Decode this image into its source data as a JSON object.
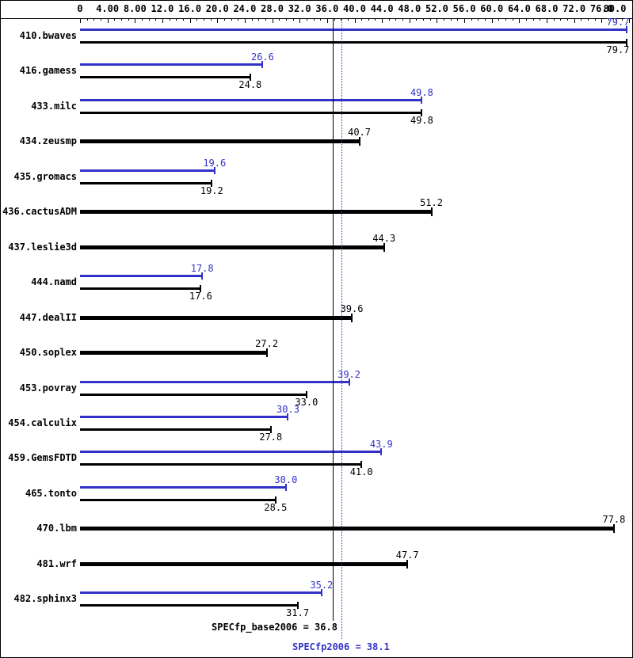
{
  "colors": {
    "peak": "#3232c8",
    "base": "#000000",
    "background": "#ffffff",
    "border": "#000000"
  },
  "axis": {
    "min": 0,
    "max": 80,
    "major_step": 4,
    "ticks": [
      {
        "value": 0,
        "label": "0"
      },
      {
        "value": 4,
        "label": "4.00"
      },
      {
        "value": 8,
        "label": "8.00"
      },
      {
        "value": 12,
        "label": "12.0"
      },
      {
        "value": 16,
        "label": "16.0"
      },
      {
        "value": 20,
        "label": "20.0"
      },
      {
        "value": 24,
        "label": "24.0"
      },
      {
        "value": 28,
        "label": "28.0"
      },
      {
        "value": 32,
        "label": "32.0"
      },
      {
        "value": 36,
        "label": "36.0"
      },
      {
        "value": 40,
        "label": "40.0"
      },
      {
        "value": 44,
        "label": "44.0"
      },
      {
        "value": 48,
        "label": "48.0"
      },
      {
        "value": 52,
        "label": "52.0"
      },
      {
        "value": 56,
        "label": "56.0"
      },
      {
        "value": 60,
        "label": "60.0"
      },
      {
        "value": 64,
        "label": "64.0"
      },
      {
        "value": 68,
        "label": "68.0"
      },
      {
        "value": 72,
        "label": "72.0"
      },
      {
        "value": 76,
        "label": "76.0"
      },
      {
        "value": 80,
        "label": "80.0"
      }
    ]
  },
  "chart_data": {
    "type": "bar",
    "orientation": "horizontal",
    "xlim": [
      0,
      80
    ],
    "series": [
      "peak",
      "base"
    ],
    "legend": "none",
    "benchmarks": [
      {
        "name": "410.bwaves",
        "peak": 79.7,
        "peak_label": "79.7",
        "base": 79.7,
        "base_label": "79.7"
      },
      {
        "name": "416.gamess",
        "peak": 26.6,
        "peak_label": "26.6",
        "base": 24.8,
        "base_label": "24.8"
      },
      {
        "name": "433.milc",
        "peak": 49.8,
        "peak_label": "49.8",
        "base": 49.8,
        "base_label": "49.8"
      },
      {
        "name": "434.zeusmp",
        "peak": null,
        "peak_label": null,
        "base": 40.7,
        "base_label": "40.7"
      },
      {
        "name": "435.gromacs",
        "peak": 19.6,
        "peak_label": "19.6",
        "base": 19.2,
        "base_label": "19.2"
      },
      {
        "name": "436.cactusADM",
        "peak": null,
        "peak_label": null,
        "base": 51.2,
        "base_label": "51.2"
      },
      {
        "name": "437.leslie3d",
        "peak": null,
        "peak_label": null,
        "base": 44.3,
        "base_label": "44.3"
      },
      {
        "name": "444.namd",
        "peak": 17.8,
        "peak_label": "17.8",
        "base": 17.6,
        "base_label": "17.6"
      },
      {
        "name": "447.dealII",
        "peak": null,
        "peak_label": null,
        "base": 39.6,
        "base_label": "39.6"
      },
      {
        "name": "450.soplex",
        "peak": null,
        "peak_label": null,
        "base": 27.2,
        "base_label": "27.2"
      },
      {
        "name": "453.povray",
        "peak": 39.2,
        "peak_label": "39.2",
        "base": 33.0,
        "base_label": "33.0"
      },
      {
        "name": "454.calculix",
        "peak": 30.3,
        "peak_label": "30.3",
        "base": 27.8,
        "base_label": "27.8"
      },
      {
        "name": "459.GemsFDTD",
        "peak": 43.9,
        "peak_label": "43.9",
        "base": 41.0,
        "base_label": "41.0"
      },
      {
        "name": "465.tonto",
        "peak": 30.0,
        "peak_label": "30.0",
        "base": 28.5,
        "base_label": "28.5"
      },
      {
        "name": "470.lbm",
        "peak": null,
        "peak_label": null,
        "base": 77.8,
        "base_label": "77.8"
      },
      {
        "name": "481.wrf",
        "peak": null,
        "peak_label": null,
        "base": 47.7,
        "base_label": "47.7"
      },
      {
        "name": "482.sphinx3",
        "peak": 35.2,
        "peak_label": "35.2",
        "base": 31.7,
        "base_label": "31.7"
      }
    ],
    "reference_lines": [
      {
        "name": "base-mean",
        "label": "SPECfp_base2006 = 36.8",
        "value": 36.8,
        "style": "solid",
        "color": "#000000"
      },
      {
        "name": "peak-mean",
        "label": "SPECfp2006 = 38.1",
        "value": 38.1,
        "style": "dotted",
        "color": "#3232c8"
      }
    ]
  }
}
